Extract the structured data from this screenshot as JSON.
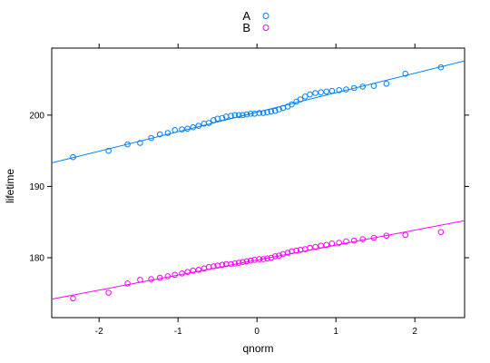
{
  "chart_data": {
    "type": "scatter",
    "title": "",
    "xlabel": "qnorm",
    "ylabel": "lifetime",
    "xlim": [
      -2.6,
      2.63
    ],
    "ylim": [
      171.6,
      209.4
    ],
    "x_ticks": [
      -2,
      -1,
      0,
      1,
      2
    ],
    "x_tick_labels": [
      "-2",
      "-1",
      "0",
      "1",
      "2"
    ],
    "y_ticks": [
      180,
      190,
      200
    ],
    "y_tick_labels": [
      "180",
      "190",
      "200"
    ],
    "grid": false,
    "legend_position": "top-center",
    "series": [
      {
        "name": "A",
        "color": "#0080ff",
        "marker": "open-circle",
        "fit_line": {
          "x": [
            -2.6,
            2.63
          ],
          "y": [
            193.3,
            207.6
          ]
        },
        "points": [
          [
            -2.33,
            194.1
          ],
          [
            -1.88,
            195.0
          ],
          [
            -1.64,
            195.9
          ],
          [
            -1.48,
            196.1
          ],
          [
            -1.34,
            196.8
          ],
          [
            -1.23,
            197.3
          ],
          [
            -1.13,
            197.5
          ],
          [
            -1.04,
            197.9
          ],
          [
            -0.95,
            198.0
          ],
          [
            -0.88,
            198.1
          ],
          [
            -0.81,
            198.3
          ],
          [
            -0.74,
            198.5
          ],
          [
            -0.67,
            198.8
          ],
          [
            -0.61,
            198.9
          ],
          [
            -0.55,
            199.3
          ],
          [
            -0.5,
            199.5
          ],
          [
            -0.44,
            199.6
          ],
          [
            -0.39,
            199.8
          ],
          [
            -0.33,
            199.9
          ],
          [
            -0.28,
            200.0
          ],
          [
            -0.23,
            200.0
          ],
          [
            -0.18,
            200.0
          ],
          [
            -0.13,
            200.1
          ],
          [
            -0.08,
            200.2
          ],
          [
            -0.03,
            200.2
          ],
          [
            0.03,
            200.3
          ],
          [
            0.08,
            200.3
          ],
          [
            0.13,
            200.4
          ],
          [
            0.18,
            200.5
          ],
          [
            0.23,
            200.6
          ],
          [
            0.28,
            200.8
          ],
          [
            0.33,
            201.0
          ],
          [
            0.39,
            201.2
          ],
          [
            0.44,
            201.5
          ],
          [
            0.5,
            201.9
          ],
          [
            0.55,
            202.2
          ],
          [
            0.61,
            202.6
          ],
          [
            0.67,
            202.9
          ],
          [
            0.74,
            203.1
          ],
          [
            0.81,
            203.2
          ],
          [
            0.88,
            203.3
          ],
          [
            0.95,
            203.4
          ],
          [
            1.04,
            203.5
          ],
          [
            1.13,
            203.6
          ],
          [
            1.23,
            203.8
          ],
          [
            1.34,
            204.0
          ],
          [
            1.48,
            204.1
          ],
          [
            1.64,
            204.4
          ],
          [
            1.88,
            205.8
          ],
          [
            2.33,
            206.7
          ]
        ]
      },
      {
        "name": "B",
        "color": "#ff00ff",
        "marker": "open-circle",
        "fit_line": {
          "x": [
            -2.6,
            2.63
          ],
          "y": [
            174.2,
            185.2
          ]
        },
        "points": [
          [
            -2.33,
            174.3
          ],
          [
            -1.88,
            175.1
          ],
          [
            -1.64,
            176.4
          ],
          [
            -1.48,
            176.9
          ],
          [
            -1.34,
            177.0
          ],
          [
            -1.23,
            177.2
          ],
          [
            -1.13,
            177.4
          ],
          [
            -1.04,
            177.6
          ],
          [
            -0.95,
            177.8
          ],
          [
            -0.88,
            178.0
          ],
          [
            -0.81,
            178.2
          ],
          [
            -0.74,
            178.3
          ],
          [
            -0.67,
            178.5
          ],
          [
            -0.61,
            178.7
          ],
          [
            -0.55,
            178.8
          ],
          [
            -0.5,
            178.9
          ],
          [
            -0.44,
            179.0
          ],
          [
            -0.39,
            179.1
          ],
          [
            -0.33,
            179.1
          ],
          [
            -0.28,
            179.2
          ],
          [
            -0.23,
            179.3
          ],
          [
            -0.18,
            179.4
          ],
          [
            -0.13,
            179.5
          ],
          [
            -0.08,
            179.6
          ],
          [
            -0.03,
            179.7
          ],
          [
            0.03,
            179.8
          ],
          [
            0.08,
            179.8
          ],
          [
            0.13,
            179.9
          ],
          [
            0.18,
            180.0
          ],
          [
            0.23,
            180.2
          ],
          [
            0.28,
            180.3
          ],
          [
            0.33,
            180.5
          ],
          [
            0.39,
            180.7
          ],
          [
            0.44,
            180.9
          ],
          [
            0.5,
            181.0
          ],
          [
            0.55,
            181.1
          ],
          [
            0.61,
            181.2
          ],
          [
            0.67,
            181.4
          ],
          [
            0.74,
            181.5
          ],
          [
            0.81,
            181.7
          ],
          [
            0.88,
            181.8
          ],
          [
            0.95,
            182.0
          ],
          [
            1.04,
            182.1
          ],
          [
            1.13,
            182.3
          ],
          [
            1.23,
            182.4
          ],
          [
            1.34,
            182.6
          ],
          [
            1.48,
            182.8
          ],
          [
            1.64,
            183.1
          ],
          [
            1.88,
            183.2
          ],
          [
            2.33,
            183.6
          ]
        ]
      }
    ]
  }
}
